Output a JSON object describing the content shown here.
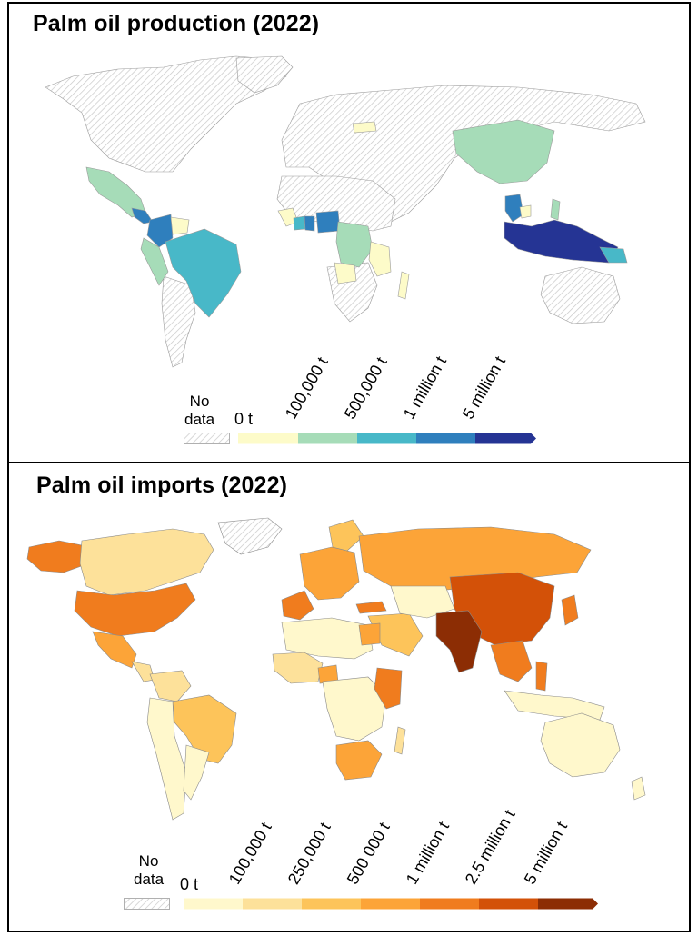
{
  "production": {
    "title": "Palm oil production (2022)",
    "legend": {
      "no_data": "No data",
      "zero": "0 t",
      "ticks": [
        "100,000 t",
        "500,000 t",
        "1 million t",
        "5 million t"
      ],
      "colors": [
        "#fdfbc9",
        "#a6dcb8",
        "#48b8c8",
        "#2f7fbd",
        "#253494"
      ]
    }
  },
  "imports": {
    "title": "Palm oil imports (2022)",
    "legend": {
      "no_data": "No data",
      "zero": "0 t",
      "ticks": [
        "100,000 t",
        "250,000 t",
        "500 000 t",
        "1 million t",
        "2.5 million t",
        "5 million t"
      ],
      "colors": [
        "#fff8cc",
        "#fde19a",
        "#fdc45a",
        "#fca438",
        "#f07c1e",
        "#d35108",
        "#8c2d04"
      ]
    }
  },
  "colors": {
    "no_data_hatch": "#c8c8c8",
    "border": "#000000"
  }
}
